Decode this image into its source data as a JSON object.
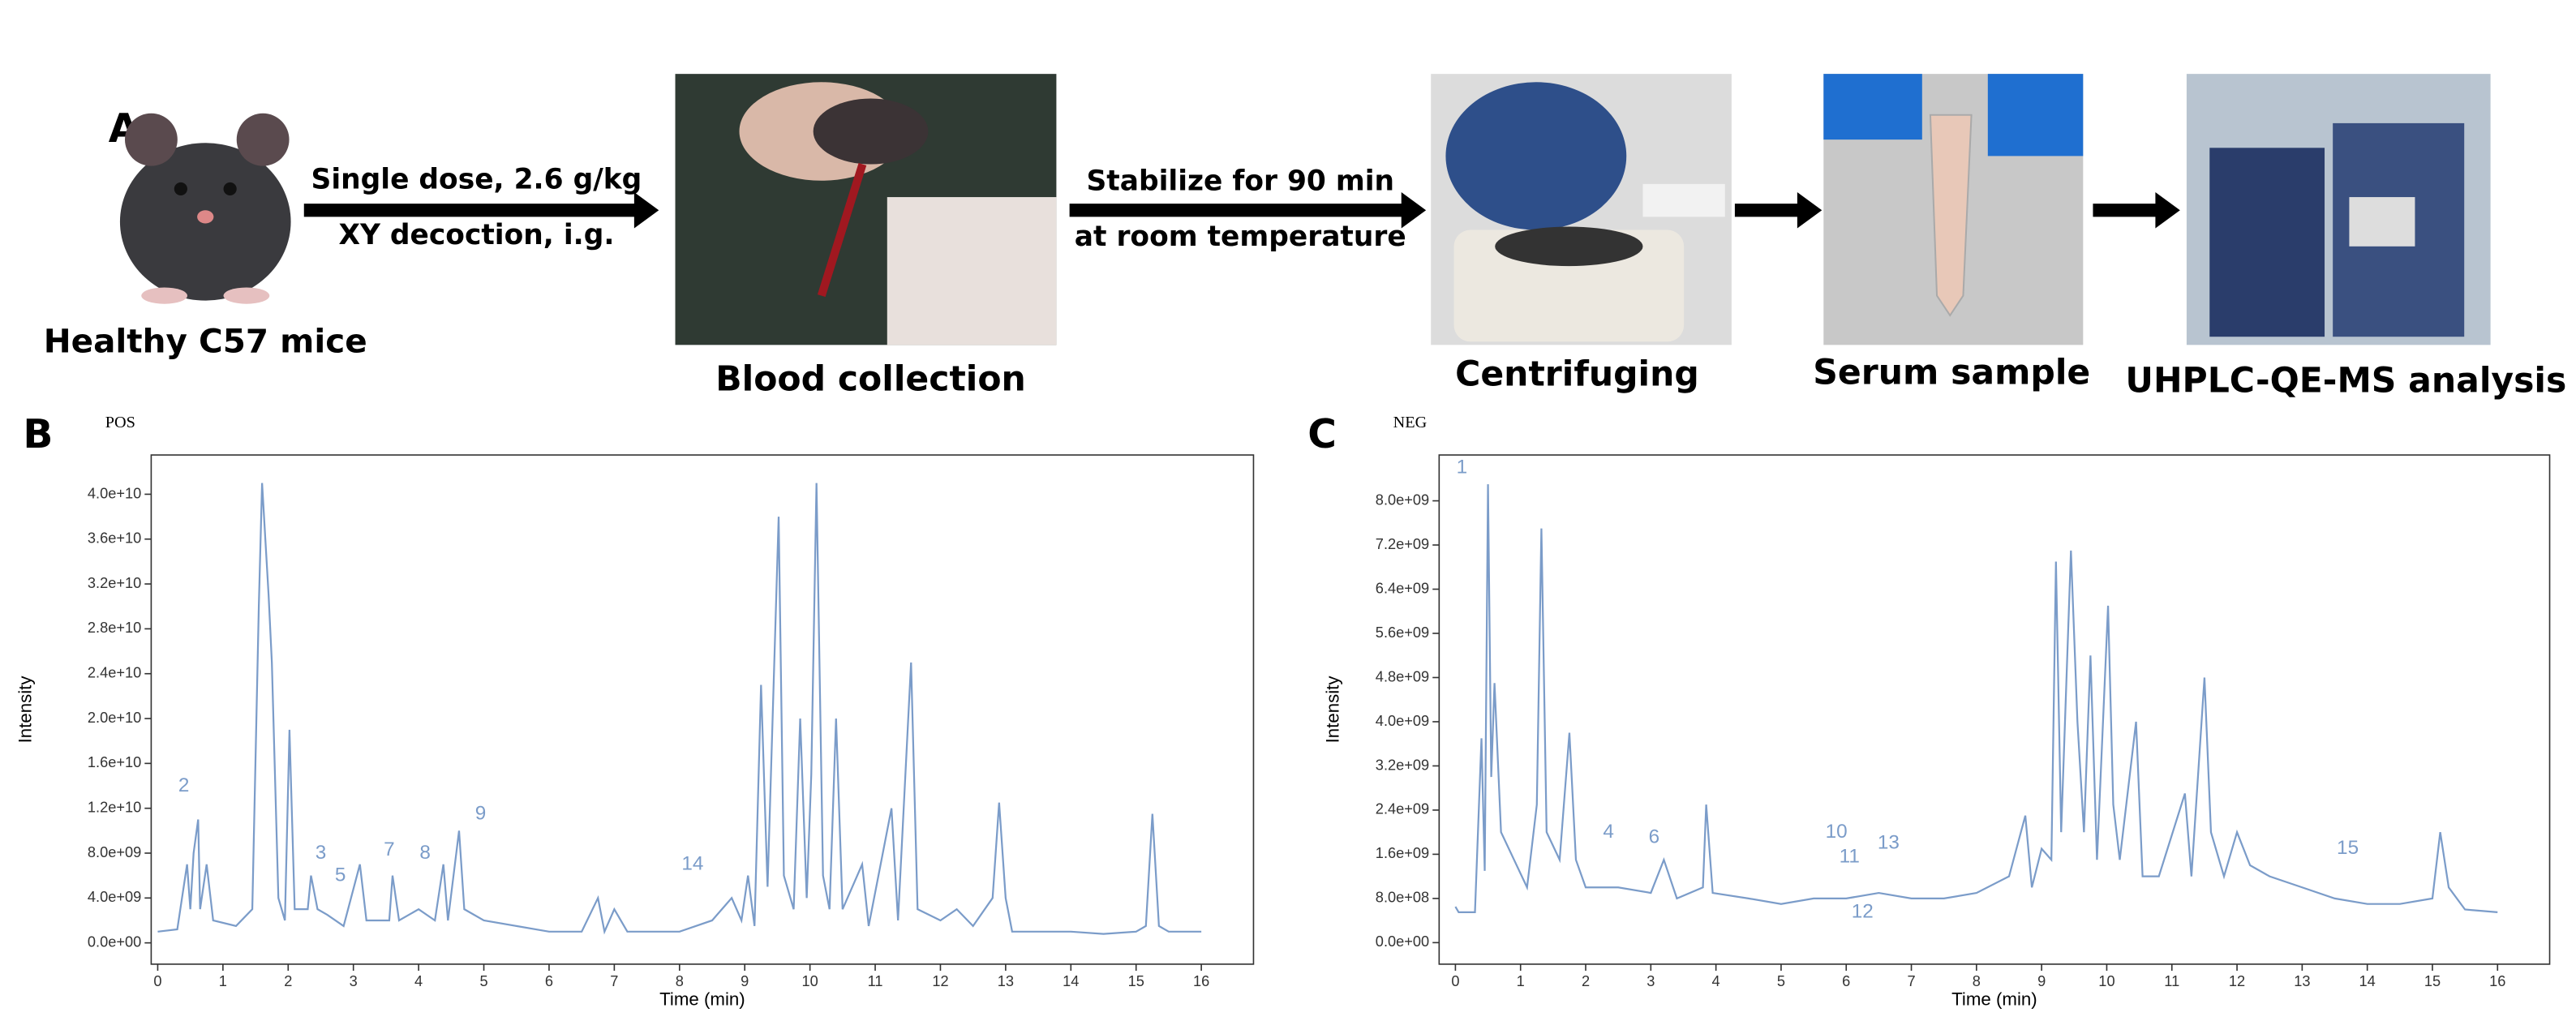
{
  "panel_label": "A",
  "workflow": {
    "steps": [
      "Healthy C57 mice",
      "Blood collection",
      "Centrifuging",
      "Serum sample",
      "UHPLC-QE-MS analysis"
    ],
    "arrow_1": [
      "Single dose, 2.6 g/kg",
      "XY decoction, i.g."
    ],
    "arrow_2": [
      "Stabilize for  90 min",
      "at room temperature"
    ]
  },
  "chart_data": [
    {
      "type": "line",
      "panel": "B",
      "title": "POS",
      "xlabel": "Time (min)",
      "ylabel": "Intensity",
      "color": "#7b9cc9",
      "grid": false,
      "xlim": [
        -0.1,
        16.8
      ],
      "ylim": [
        -1900000000.0,
        43500000000.0
      ],
      "xticks": [
        0,
        1,
        2,
        3,
        4,
        5,
        6,
        7,
        8,
        9,
        10,
        11,
        12,
        13,
        14,
        15,
        16
      ],
      "yticks": [
        {
          "value": 0,
          "label": "0.0e+00"
        },
        {
          "value": 4000000000.0,
          "label": "4.0e+09"
        },
        {
          "value": 8000000000.0,
          "label": "8.0e+09"
        },
        {
          "value": 12000000000.0,
          "label": "1.2e+10"
        },
        {
          "value": 16000000000.0,
          "label": "1.6e+10"
        },
        {
          "value": 20000000000.0,
          "label": "2.0e+10"
        },
        {
          "value": 24000000000.0,
          "label": "2.4e+10"
        },
        {
          "value": 28000000000.0,
          "label": "2.8e+10"
        },
        {
          "value": 32000000000.0,
          "label": "3.2e+10"
        },
        {
          "value": 36000000000.0,
          "label": "3.6e+10"
        },
        {
          "value": 40000000000.0,
          "label": "4.0e+10"
        }
      ],
      "x": [
        0,
        0.3,
        0.45,
        0.5,
        0.55,
        0.62,
        0.65,
        0.75,
        0.85,
        1.2,
        1.45,
        1.55,
        1.6,
        1.65,
        1.7,
        1.75,
        1.85,
        1.95,
        2.02,
        2.1,
        2.3,
        2.35,
        2.45,
        2.6,
        2.85,
        3.1,
        3.2,
        3.55,
        3.6,
        3.7,
        4.0,
        4.25,
        4.38,
        4.45,
        4.62,
        4.7,
        5.0,
        5.5,
        6.0,
        6.5,
        6.75,
        6.85,
        7.0,
        7.2,
        8.0,
        8.5,
        8.8,
        8.95,
        9.05,
        9.15,
        9.25,
        9.35,
        9.52,
        9.6,
        9.75,
        9.85,
        9.95,
        10.02,
        10.1,
        10.2,
        10.3,
        10.4,
        10.5,
        10.8,
        10.9,
        11.25,
        11.35,
        11.55,
        11.65,
        12.0,
        12.25,
        12.5,
        12.8,
        12.9,
        13.0,
        13.1,
        13.6,
        14.0,
        14.5,
        15.0,
        15.15,
        15.25,
        15.35,
        15.5,
        16
      ],
      "values": [
        1000000000.0,
        1200000000.0,
        7000000000.0,
        3000000000.0,
        8000000000.0,
        11000000000.0,
        3000000000.0,
        7000000000.0,
        2000000000.0,
        1500000000.0,
        3000000000.0,
        30000000000.0,
        41000000000.0,
        36000000000.0,
        31000000000.0,
        25000000000.0,
        4000000000.0,
        2000000000.0,
        19000000000.0,
        3000000000.0,
        3000000000.0,
        6000000000.0,
        3000000000.0,
        2500000000.0,
        1500000000.0,
        7000000000.0,
        2000000000.0,
        2000000000.0,
        6000000000.0,
        2000000000.0,
        3000000000.0,
        2000000000.0,
        7000000000.0,
        2000000000.0,
        10000000000.0,
        3000000000.0,
        2000000000.0,
        1500000000.0,
        1000000000.0,
        1000000000.0,
        4000000000.0,
        1000000000.0,
        3000000000.0,
        1000000000.0,
        1000000000.0,
        2000000000.0,
        4000000000.0,
        2000000000.0,
        6000000000.0,
        1500000000.0,
        23000000000.0,
        5000000000.0,
        38000000000.0,
        6000000000.0,
        3000000000.0,
        20000000000.0,
        4000000000.0,
        15000000000.0,
        41000000000.0,
        6000000000.0,
        3000000000.0,
        20000000000.0,
        3000000000.0,
        7000000000.0,
        1500000000.0,
        12000000000.0,
        2000000000.0,
        25000000000.0,
        3000000000.0,
        2000000000.0,
        3000000000.0,
        1500000000.0,
        4000000000.0,
        12500000000.0,
        4000000000.0,
        1000000000.0,
        1000000000.0,
        1000000000.0,
        800000000.0,
        1000000000.0,
        1500000000.0,
        11500000000.0,
        1500000000.0,
        1000000000.0,
        1000000000.0
      ],
      "annotations": [
        {
          "label": "2",
          "x": 0.4,
          "y": 12500000000.0
        },
        {
          "label": "3",
          "x": 2.5,
          "y": 6500000000.0
        },
        {
          "label": "5",
          "x": 2.8,
          "y": 4500000000.0
        },
        {
          "label": "7",
          "x": 3.55,
          "y": 6800000000.0
        },
        {
          "label": "8",
          "x": 4.1,
          "y": 6500000000.0
        },
        {
          "label": "9",
          "x": 4.95,
          "y": 10000000000.0
        },
        {
          "label": "14",
          "x": 8.2,
          "y": 5500000000.0
        }
      ]
    },
    {
      "type": "line",
      "panel": "C",
      "title": "NEG",
      "xlabel": "Time (min)",
      "ylabel": "Intensity",
      "color": "#7b9cc9",
      "grid": false,
      "xlim": [
        -0.25,
        16.8
      ],
      "ylim": [
        -390000000.0,
        8830000000.0
      ],
      "xticks": [
        0,
        1,
        2,
        3,
        4,
        5,
        6,
        7,
        8,
        9,
        10,
        11,
        12,
        13,
        14,
        15,
        16
      ],
      "yticks": [
        {
          "value": 0,
          "label": "0.0e+00"
        },
        {
          "value": 800000000.0,
          "label": "8.0e+08"
        },
        {
          "value": 1600000000.0,
          "label": "1.6e+09"
        },
        {
          "value": 2400000000.0,
          "label": "2.4e+09"
        },
        {
          "value": 3200000000.0,
          "label": "3.2e+09"
        },
        {
          "value": 4000000000.0,
          "label": "4.0e+09"
        },
        {
          "value": 4800000000.0,
          "label": "4.8e+09"
        },
        {
          "value": 5600000000.0,
          "label": "5.6e+09"
        },
        {
          "value": 6400000000.0,
          "label": "6.4e+09"
        },
        {
          "value": 7200000000.0,
          "label": "7.2e+09"
        },
        {
          "value": 8000000000.0,
          "label": "8.0e+09"
        }
      ],
      "x": [
        0,
        0.05,
        0.3,
        0.4,
        0.45,
        0.5,
        0.55,
        0.6,
        0.7,
        0.9,
        1.1,
        1.25,
        1.32,
        1.4,
        1.6,
        1.75,
        1.85,
        2.0,
        2.5,
        3.0,
        3.2,
        3.4,
        3.8,
        3.85,
        3.95,
        4.5,
        5.0,
        5.5,
        6.0,
        6.5,
        7.0,
        7.5,
        8.0,
        8.5,
        8.75,
        8.85,
        9.0,
        9.15,
        9.22,
        9.3,
        9.45,
        9.55,
        9.65,
        9.75,
        9.85,
        10.02,
        10.1,
        10.2,
        10.45,
        10.55,
        10.8,
        11.2,
        11.3,
        11.5,
        11.6,
        11.8,
        12.0,
        12.2,
        12.5,
        13.0,
        13.5,
        14.0,
        14.5,
        15.0,
        15.12,
        15.25,
        15.5,
        16
      ],
      "values": [
        650000000.0,
        550000000.0,
        550000000.0,
        3700000000.0,
        1300000000.0,
        8300000000.0,
        3000000000.0,
        4700000000.0,
        2000000000.0,
        1500000000.0,
        1000000000.0,
        2500000000.0,
        7500000000.0,
        2000000000.0,
        1500000000.0,
        3800000000.0,
        1500000000.0,
        1000000000.0,
        1000000000.0,
        900000000.0,
        1500000000.0,
        800000000.0,
        1000000000.0,
        2500000000.0,
        900000000.0,
        800000000.0,
        700000000.0,
        800000000.0,
        800000000.0,
        900000000.0,
        800000000.0,
        800000000.0,
        900000000.0,
        1200000000.0,
        2300000000.0,
        1000000000.0,
        1700000000.0,
        1500000000.0,
        6900000000.0,
        2000000000.0,
        7100000000.0,
        4000000000.0,
        2000000000.0,
        5200000000.0,
        1500000000.0,
        6100000000.0,
        2500000000.0,
        1500000000.0,
        4000000000.0,
        1200000000.0,
        1200000000.0,
        2700000000.0,
        1200000000.0,
        4800000000.0,
        2000000000.0,
        1200000000.0,
        2000000000.0,
        1400000000.0,
        1200000000.0,
        1000000000.0,
        800000000.0,
        700000000.0,
        700000000.0,
        800000000.0,
        2000000000.0,
        1000000000.0,
        600000000.0,
        550000000.0
      ],
      "annotations": [
        {
          "label": "1",
          "x": 0.1,
          "y": 8300000000.0
        },
        {
          "label": "4",
          "x": 2.35,
          "y": 1700000000.0
        },
        {
          "label": "6",
          "x": 3.05,
          "y": 1600000000.0
        },
        {
          "label": "10",
          "x": 5.85,
          "y": 1700000000.0
        },
        {
          "label": "11",
          "x": 6.05,
          "y": 1250000000.0
        },
        {
          "label": "12",
          "x": 6.25,
          "y": 250000000.0
        },
        {
          "label": "13",
          "x": 6.65,
          "y": 1500000000.0
        },
        {
          "label": "15",
          "x": 13.7,
          "y": 1400000000.0
        }
      ]
    }
  ]
}
